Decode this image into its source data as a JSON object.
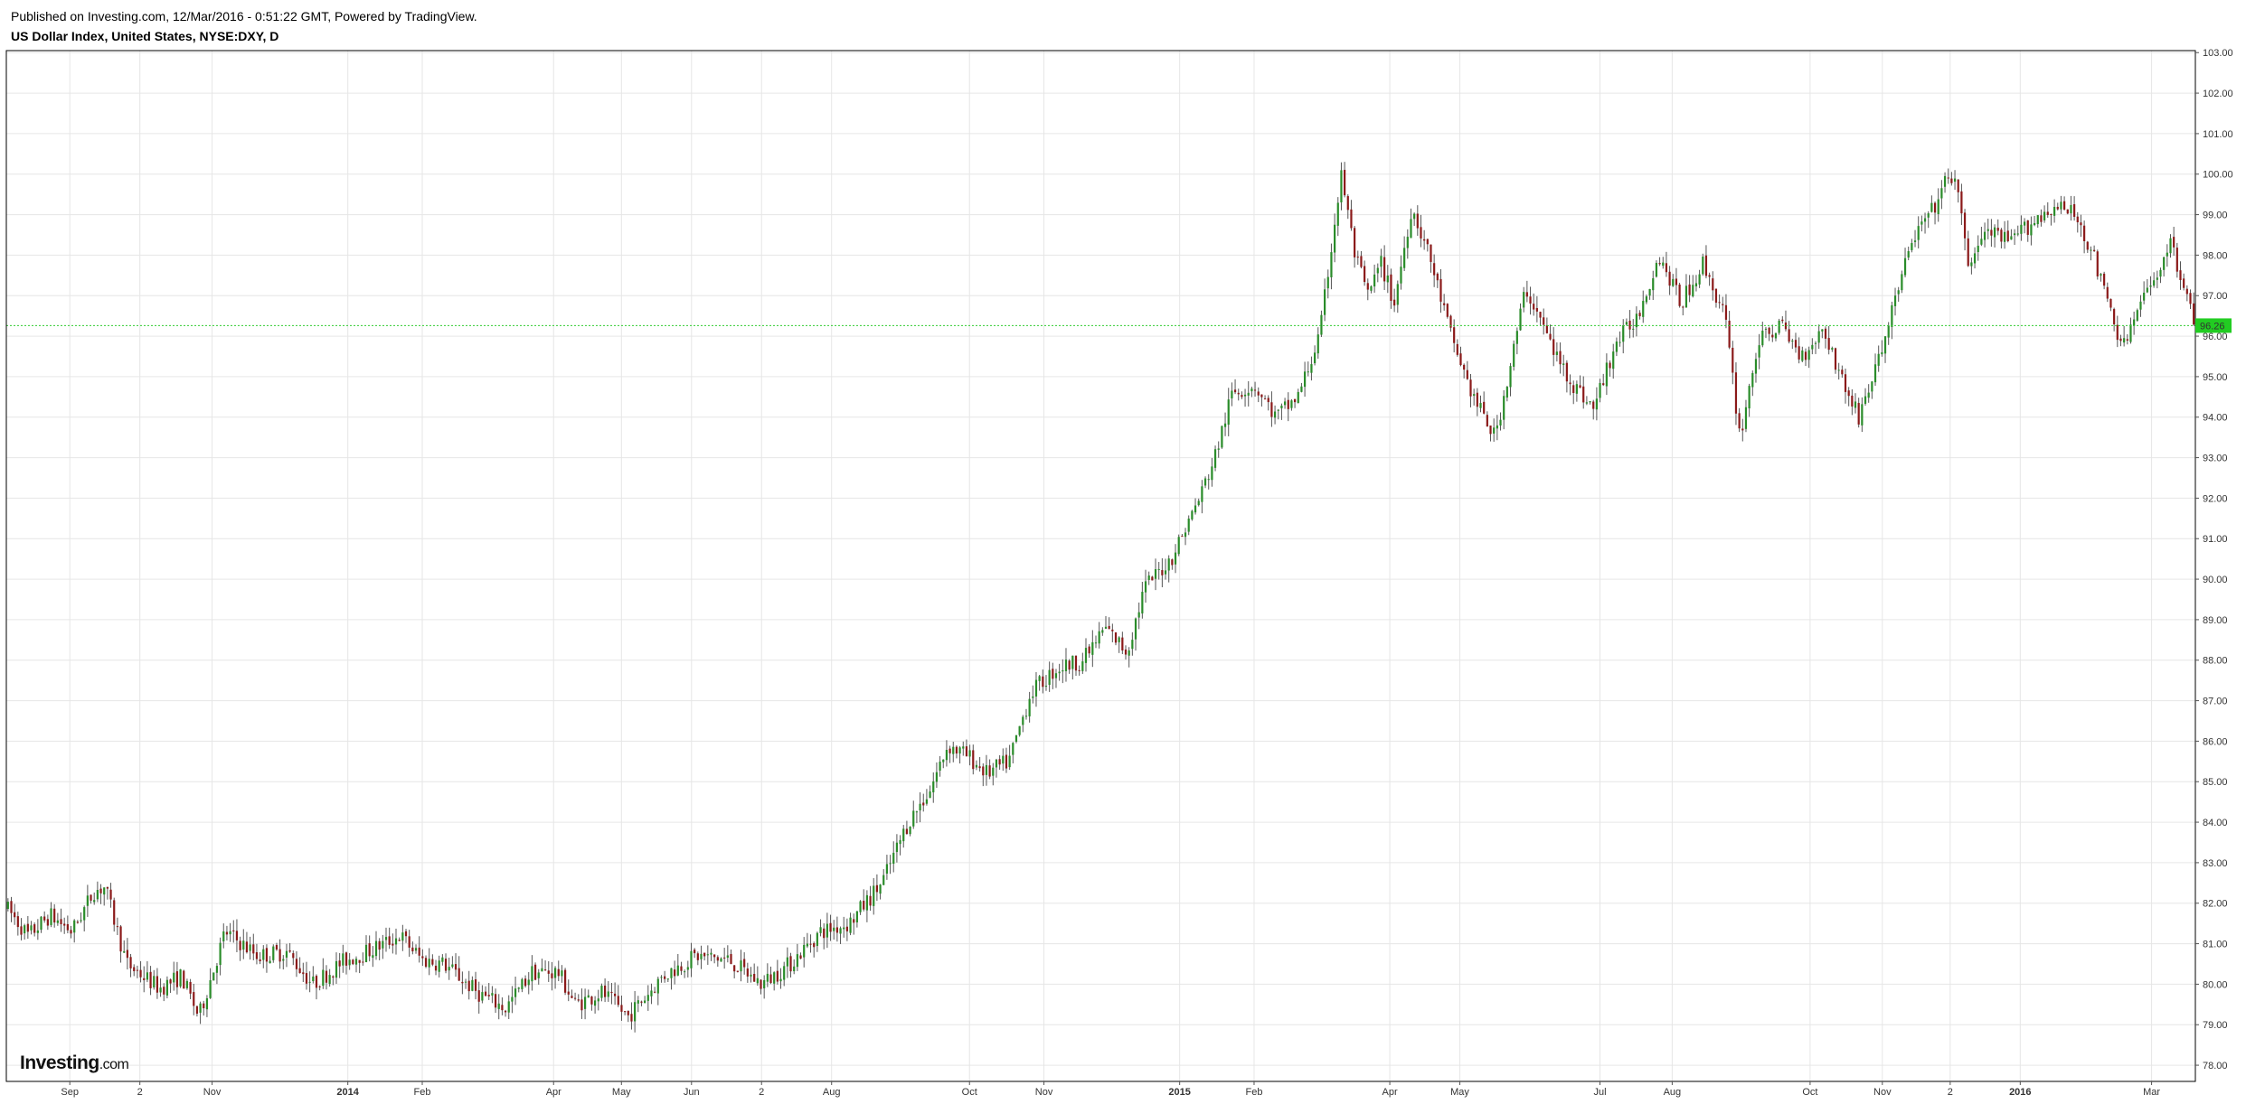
{
  "header": {
    "published": "Published on Investing.com, 12/Mar/2016 - 0:51:22 GMT, Powered by TradingView.",
    "title": "US Dollar Index, United States, NYSE:DXY, D"
  },
  "logo": {
    "brand": "Investing",
    "suffix": ".com"
  },
  "colors": {
    "up": "#2a8c2a",
    "down": "#8b1a1a",
    "wick": "#555555",
    "grid": "#e6e6e6",
    "price_line": "#33cc33",
    "price_tag_bg": "#22cc22"
  },
  "chart_data": {
    "type": "candlestick",
    "ylim": [
      77.6,
      103.05
    ],
    "current_price": 96.26,
    "current_price_label": "96.26",
    "y_ticks": [
      "78.00",
      "79.00",
      "80.00",
      "81.00",
      "82.00",
      "83.00",
      "84.00",
      "85.00",
      "86.00",
      "87.00",
      "88.00",
      "89.00",
      "90.00",
      "91.00",
      "92.00",
      "93.00",
      "94.00",
      "95.00",
      "96.00",
      "97.00",
      "98.00",
      "99.00",
      "100.00",
      "101.00",
      "102.00",
      "103.00"
    ],
    "x_ticks": [
      {
        "label": "Sep",
        "pos": 0.029,
        "bold": false
      },
      {
        "label": "2",
        "pos": 0.061,
        "bold": false
      },
      {
        "label": "Nov",
        "pos": 0.094,
        "bold": false
      },
      {
        "label": "2014",
        "pos": 0.156,
        "bold": true
      },
      {
        "label": "Feb",
        "pos": 0.19,
        "bold": false
      },
      {
        "label": "Apr",
        "pos": 0.25,
        "bold": false
      },
      {
        "label": "May",
        "pos": 0.281,
        "bold": false
      },
      {
        "label": "Jun",
        "pos": 0.313,
        "bold": false
      },
      {
        "label": "2",
        "pos": 0.345,
        "bold": false
      },
      {
        "label": "Aug",
        "pos": 0.377,
        "bold": false
      },
      {
        "label": "Oct",
        "pos": 0.44,
        "bold": false
      },
      {
        "label": "Nov",
        "pos": 0.474,
        "bold": false
      },
      {
        "label": "2015",
        "pos": 0.536,
        "bold": true
      },
      {
        "label": "Feb",
        "pos": 0.57,
        "bold": false
      },
      {
        "label": "Apr",
        "pos": 0.632,
        "bold": false
      },
      {
        "label": "May",
        "pos": 0.664,
        "bold": false
      },
      {
        "label": "Jul",
        "pos": 0.728,
        "bold": false
      },
      {
        "label": "Aug",
        "pos": 0.761,
        "bold": false
      },
      {
        "label": "Oct",
        "pos": 0.824,
        "bold": false
      },
      {
        "label": "Nov",
        "pos": 0.857,
        "bold": false
      },
      {
        "label": "2",
        "pos": 0.888,
        "bold": false
      },
      {
        "label": "2016",
        "pos": 0.92,
        "bold": true
      },
      {
        "label": "Mar",
        "pos": 0.98,
        "bold": false
      }
    ],
    "anchors": [
      [
        0.0,
        81.9
      ],
      [
        0.01,
        81.2
      ],
      [
        0.02,
        81.7
      ],
      [
        0.03,
        81.3
      ],
      [
        0.04,
        82.3
      ],
      [
        0.045,
        82.4
      ],
      [
        0.055,
        80.5
      ],
      [
        0.07,
        79.9
      ],
      [
        0.08,
        80.2
      ],
      [
        0.088,
        79.2
      ],
      [
        0.1,
        81.3
      ],
      [
        0.115,
        80.7
      ],
      [
        0.128,
        80.8
      ],
      [
        0.14,
        80.0
      ],
      [
        0.155,
        80.6
      ],
      [
        0.165,
        80.8
      ],
      [
        0.18,
        81.2
      ],
      [
        0.19,
        80.6
      ],
      [
        0.2,
        80.5
      ],
      [
        0.215,
        79.8
      ],
      [
        0.228,
        79.4
      ],
      [
        0.24,
        80.3
      ],
      [
        0.252,
        80.3
      ],
      [
        0.26,
        79.5
      ],
      [
        0.272,
        79.8
      ],
      [
        0.284,
        79.2
      ],
      [
        0.3,
        80.2
      ],
      [
        0.315,
        80.7
      ],
      [
        0.33,
        80.6
      ],
      [
        0.345,
        80.0
      ],
      [
        0.358,
        80.5
      ],
      [
        0.372,
        81.3
      ],
      [
        0.385,
        81.5
      ],
      [
        0.4,
        82.5
      ],
      [
        0.412,
        84.0
      ],
      [
        0.422,
        84.8
      ],
      [
        0.43,
        85.9
      ],
      [
        0.44,
        85.6
      ],
      [
        0.448,
        85.2
      ],
      [
        0.458,
        85.5
      ],
      [
        0.468,
        87.2
      ],
      [
        0.48,
        87.8
      ],
      [
        0.492,
        88.0
      ],
      [
        0.502,
        88.8
      ],
      [
        0.512,
        88.2
      ],
      [
        0.52,
        89.8
      ],
      [
        0.532,
        90.5
      ],
      [
        0.545,
        92.0
      ],
      [
        0.552,
        93.0
      ],
      [
        0.56,
        94.6
      ],
      [
        0.57,
        94.8
      ],
      [
        0.58,
        94.0
      ],
      [
        0.59,
        94.5
      ],
      [
        0.6,
        96.0
      ],
      [
        0.606,
        98.5
      ],
      [
        0.61,
        100.0
      ],
      [
        0.616,
        98.0
      ],
      [
        0.622,
        97.0
      ],
      [
        0.628,
        97.8
      ],
      [
        0.634,
        96.8
      ],
      [
        0.642,
        99.2
      ],
      [
        0.65,
        98.0
      ],
      [
        0.66,
        96.0
      ],
      [
        0.67,
        94.5
      ],
      [
        0.68,
        93.5
      ],
      [
        0.688,
        95.5
      ],
      [
        0.694,
        97.2
      ],
      [
        0.7,
        96.5
      ],
      [
        0.708,
        95.5
      ],
      [
        0.716,
        94.8
      ],
      [
        0.725,
        94.2
      ],
      [
        0.735,
        95.8
      ],
      [
        0.745,
        96.5
      ],
      [
        0.755,
        98.0
      ],
      [
        0.765,
        96.8
      ],
      [
        0.775,
        97.8
      ],
      [
        0.785,
        96.5
      ],
      [
        0.792,
        93.5
      ],
      [
        0.8,
        95.8
      ],
      [
        0.81,
        96.3
      ],
      [
        0.82,
        95.5
      ],
      [
        0.83,
        96.2
      ],
      [
        0.838,
        95.0
      ],
      [
        0.846,
        94.0
      ],
      [
        0.856,
        95.5
      ],
      [
        0.864,
        97.2
      ],
      [
        0.872,
        98.5
      ],
      [
        0.88,
        99.1
      ],
      [
        0.886,
        99.8
      ],
      [
        0.89,
        100.0
      ],
      [
        0.896,
        97.8
      ],
      [
        0.905,
        98.6
      ],
      [
        0.915,
        98.3
      ],
      [
        0.925,
        98.8
      ],
      [
        0.935,
        99.2
      ],
      [
        0.945,
        99.0
      ],
      [
        0.952,
        98.2
      ],
      [
        0.96,
        96.8
      ],
      [
        0.967,
        95.7
      ],
      [
        0.975,
        96.8
      ],
      [
        0.982,
        97.5
      ],
      [
        0.988,
        98.3
      ],
      [
        0.994,
        97.5
      ],
      [
        1.0,
        96.1
      ]
    ]
  }
}
